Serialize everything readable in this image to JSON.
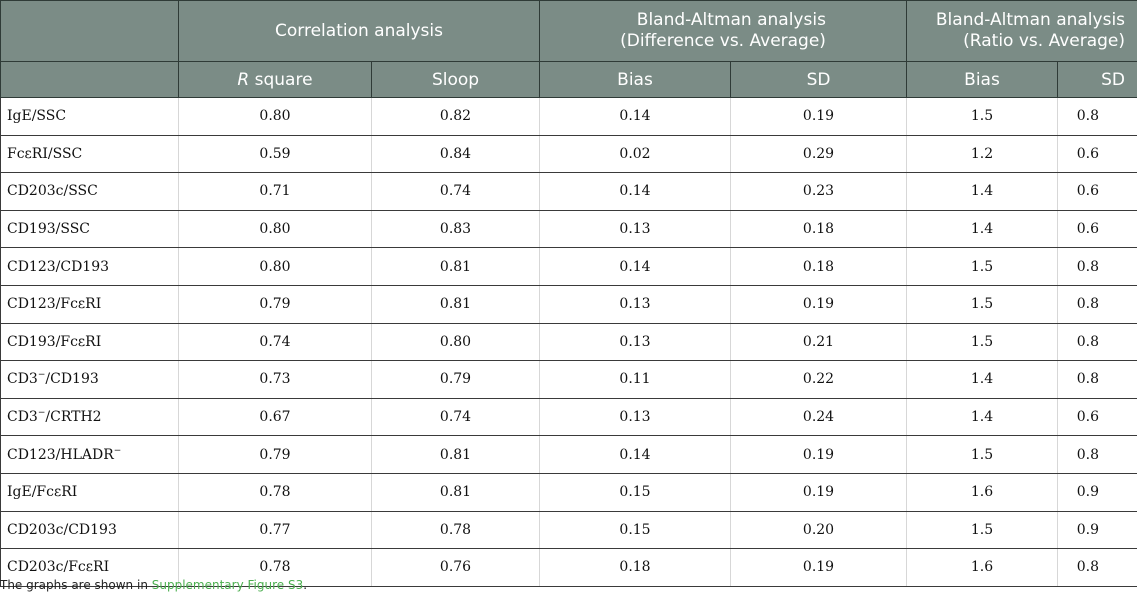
{
  "header": {
    "group1": "Correlation analysis",
    "group2_line1": "Bland-Altman analysis",
    "group2_line2": "(Difference vs. Average)",
    "group3_line1": "Bland-Altman analysis",
    "group3_line2": "(Ratio vs. Average)",
    "col1_italic": "R",
    "col1_rest": " square",
    "col2": "Sloop",
    "col3": "Bias",
    "col4": "SD",
    "col5": "Bias",
    "col6": "SD"
  },
  "rows": [
    {
      "label": "IgE/SSC",
      "sup": "",
      "label_after": "",
      "values": [
        "0.80",
        "0.82",
        "0.14",
        "0.19",
        "1.5",
        "0.8"
      ]
    },
    {
      "label": "FcεRI/SSC",
      "sup": "",
      "label_after": "",
      "values": [
        "0.59",
        "0.84",
        "0.02",
        "0.29",
        "1.2",
        "0.6"
      ]
    },
    {
      "label": "CD203c/SSC",
      "sup": "",
      "label_after": "",
      "values": [
        "0.71",
        "0.74",
        "0.14",
        "0.23",
        "1.4",
        "0.6"
      ]
    },
    {
      "label": "CD193/SSC",
      "sup": "",
      "label_after": "",
      "values": [
        "0.80",
        "0.83",
        "0.13",
        "0.18",
        "1.4",
        "0.6"
      ]
    },
    {
      "label": "CD123/CD193",
      "sup": "",
      "label_after": "",
      "values": [
        "0.80",
        "0.81",
        "0.14",
        "0.18",
        "1.5",
        "0.8"
      ]
    },
    {
      "label": "CD123/FcεRI",
      "sup": "",
      "label_after": "",
      "values": [
        "0.79",
        "0.81",
        "0.13",
        "0.19",
        "1.5",
        "0.8"
      ]
    },
    {
      "label": "CD193/FcεRI",
      "sup": "",
      "label_after": "",
      "values": [
        "0.74",
        "0.80",
        "0.13",
        "0.21",
        "1.5",
        "0.8"
      ]
    },
    {
      "label": "CD3",
      "sup": "−",
      "label_after": "/CD193",
      "values": [
        "0.73",
        "0.79",
        "0.11",
        "0.22",
        "1.4",
        "0.8"
      ]
    },
    {
      "label": "CD3",
      "sup": "−",
      "label_after": "/CRTH2",
      "values": [
        "0.67",
        "0.74",
        "0.13",
        "0.24",
        "1.4",
        "0.6"
      ]
    },
    {
      "label": "CD123/HLADR",
      "sup": "−",
      "label_after": "",
      "values": [
        "0.79",
        "0.81",
        "0.14",
        "0.19",
        "1.5",
        "0.8"
      ]
    },
    {
      "label": "IgE/FcεRI",
      "sup": "",
      "label_after": "",
      "values": [
        "0.78",
        "0.81",
        "0.15",
        "0.19",
        "1.6",
        "0.9"
      ]
    },
    {
      "label": "CD203c/CD193",
      "sup": "",
      "label_after": "",
      "values": [
        "0.77",
        "0.78",
        "0.15",
        "0.20",
        "1.5",
        "0.9"
      ]
    },
    {
      "label": "CD203c/FcεRI",
      "sup": "",
      "label_after": "",
      "values": [
        "0.78",
        "0.76",
        "0.18",
        "0.19",
        "1.6",
        "0.8"
      ]
    }
  ],
  "footnote": {
    "prefix": "The graphs are shown in ",
    "link": "Supplementary Figure S3",
    "suffix": "."
  },
  "colors": {
    "header_bg": "#7b8c86",
    "link": "#4caf50"
  }
}
